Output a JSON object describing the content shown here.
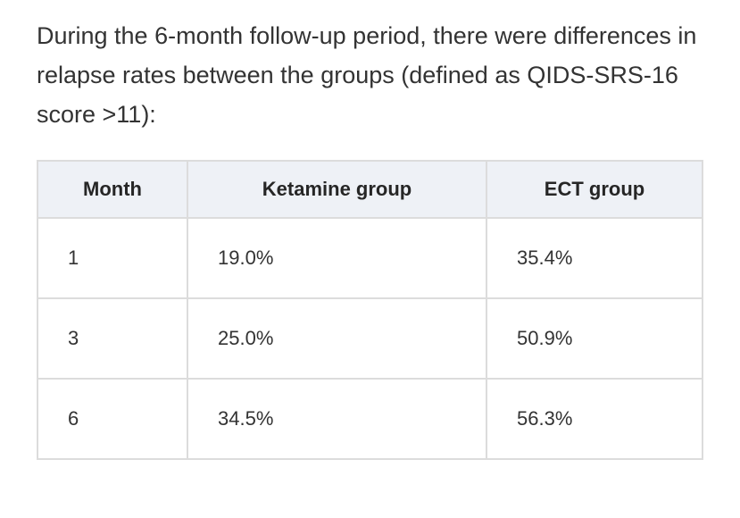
{
  "intro": {
    "text": "During the 6-month follow-up period, there were differences in relapse rates between the groups (defined as QIDS-SRS-16 score >11):"
  },
  "table": {
    "headers": [
      "Month",
      "Ketamine group",
      "ECT group"
    ],
    "rows": [
      [
        "1",
        "19.0%",
        "35.4%"
      ],
      [
        "3",
        "25.0%",
        "50.9%"
      ],
      [
        "6",
        "34.5%",
        "56.3%"
      ]
    ]
  }
}
